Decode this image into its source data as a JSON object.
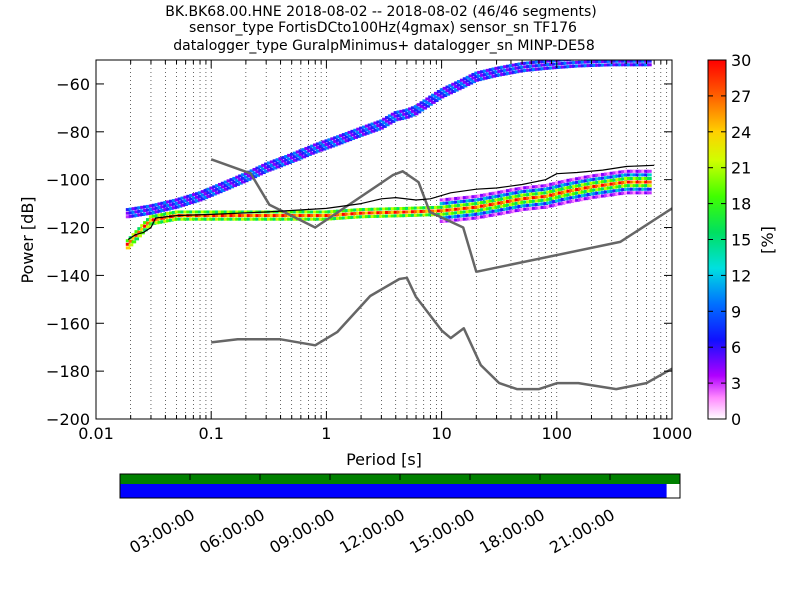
{
  "title": {
    "line1": "BK.BK68.00.HNE   2018-08-02 -- 2018-08-02  (46/46 segments)",
    "line2": "sensor_type FortisDCto100Hz(4gmax) sensor_sn TF176",
    "line3": "datalogger_type GuralpMinimus+ datalogger_sn MINP-DE58"
  },
  "colors": {
    "model_line": "#666666",
    "mode_line": "#000000",
    "coverage_ok": "#008000",
    "coverage_data": "#0000ff"
  },
  "chart_data": {
    "type": "heatmap",
    "xlabel": "Period [s]",
    "ylabel": "Power [dB]",
    "x_scale": "log",
    "xlim": [
      0.01,
      1000
    ],
    "ylim": [
      -200,
      -50
    ],
    "x_ticks": [
      "0.01",
      "0.1",
      "1",
      "10",
      "100",
      "1000"
    ],
    "y_ticks": [
      "−60",
      "−80",
      "−100",
      "−120",
      "−140",
      "−160",
      "−180",
      "−200"
    ],
    "y_tick_values": [
      -60,
      -80,
      -100,
      -120,
      -140,
      -160,
      -180,
      -200
    ],
    "grid": "vertical dotted",
    "colorbar": {
      "label": "[%]",
      "range": [
        0,
        30
      ],
      "ticks": [
        "0",
        "3",
        "6",
        "9",
        "12",
        "15",
        "18",
        "21",
        "24",
        "27",
        "30"
      ]
    },
    "upper_noise_model": [
      [
        0.1,
        -91.5
      ],
      [
        0.22,
        -97.4
      ],
      [
        0.32,
        -110.5
      ],
      [
        0.8,
        -120
      ],
      [
        3.8,
        -98
      ],
      [
        4.6,
        -96.5
      ],
      [
        6.3,
        -101
      ],
      [
        7.9,
        -113.5
      ],
      [
        15.4,
        -120
      ],
      [
        20,
        -138.5
      ],
      [
        354.8,
        -126
      ],
      [
        1000,
        -112
      ]
    ],
    "lower_noise_model": [
      [
        0.1,
        -168
      ],
      [
        0.17,
        -166.7
      ],
      [
        0.4,
        -166.7
      ],
      [
        0.8,
        -169.2
      ],
      [
        1.24,
        -163.7
      ],
      [
        2.4,
        -148.6
      ],
      [
        4.3,
        -141.5
      ],
      [
        5,
        -141
      ],
      [
        6,
        -149
      ],
      [
        10,
        -163
      ],
      [
        12,
        -166.2
      ],
      [
        15.6,
        -162.1
      ],
      [
        21.9,
        -177.5
      ],
      [
        31.6,
        -185
      ],
      [
        45,
        -187.5
      ],
      [
        70,
        -187.5
      ],
      [
        101,
        -185
      ],
      [
        154,
        -185
      ],
      [
        328,
        -187.5
      ],
      [
        600,
        -185
      ],
      [
        1000,
        -179
      ]
    ],
    "mode_line": [
      [
        0.019,
        -125
      ],
      [
        0.022,
        -123
      ],
      [
        0.026,
        -122
      ],
      [
        0.03,
        -120
      ],
      [
        0.033,
        -116
      ],
      [
        0.05,
        -115
      ],
      [
        0.1,
        -114.5
      ],
      [
        0.3,
        -113.5
      ],
      [
        1,
        -112
      ],
      [
        2,
        -110
      ],
      [
        3,
        -108
      ],
      [
        4,
        -107.5
      ],
      [
        6,
        -108.5
      ],
      [
        8,
        -108
      ],
      [
        12,
        -105.5
      ],
      [
        20,
        -104
      ],
      [
        30,
        -103.5
      ],
      [
        50,
        -102
      ],
      [
        80,
        -100
      ],
      [
        100,
        -97.5
      ],
      [
        150,
        -97
      ],
      [
        250,
        -96
      ],
      [
        400,
        -94.5
      ],
      [
        700,
        -94
      ]
    ],
    "psd_density": [
      {
        "name": "upper branch",
        "points": [
          [
            0.019,
            -114
          ],
          [
            0.03,
            -112.5
          ],
          [
            0.05,
            -110
          ],
          [
            0.08,
            -107
          ],
          [
            0.12,
            -103.5
          ],
          [
            0.2,
            -99
          ],
          [
            0.3,
            -95
          ],
          [
            0.5,
            -91
          ],
          [
            0.8,
            -87
          ],
          [
            1.2,
            -84
          ],
          [
            2,
            -80
          ],
          [
            3,
            -77
          ],
          [
            4,
            -73.5
          ],
          [
            5,
            -72.5
          ],
          [
            6,
            -71
          ],
          [
            8,
            -67
          ],
          [
            10,
            -64
          ],
          [
            15,
            -60
          ],
          [
            20,
            -57
          ],
          [
            30,
            -55
          ],
          [
            50,
            -53
          ],
          [
            80,
            -52
          ],
          [
            150,
            -51
          ],
          [
            300,
            -50.5
          ],
          [
            650,
            -50.5
          ]
        ]
      },
      {
        "name": "lower branch",
        "points": [
          [
            0.019,
            -127
          ],
          [
            0.025,
            -121
          ],
          [
            0.03,
            -117
          ],
          [
            0.05,
            -115
          ],
          [
            0.1,
            -115
          ],
          [
            0.2,
            -115
          ],
          [
            0.5,
            -115
          ],
          [
            1,
            -115
          ],
          [
            2,
            -114
          ],
          [
            5,
            -113.5
          ],
          [
            10,
            -113
          ],
          [
            20,
            -111.5
          ],
          [
            30,
            -110
          ],
          [
            50,
            -108
          ],
          [
            80,
            -107
          ],
          [
            120,
            -105
          ],
          [
            200,
            -103
          ],
          [
            400,
            -101
          ],
          [
            650,
            -101
          ]
        ]
      }
    ]
  },
  "coverage": {
    "time_ticks": [
      "03:00:00",
      "06:00:00",
      "09:00:00",
      "12:00:00",
      "15:00:00",
      "18:00:00",
      "21:00:00"
    ],
    "data_fraction": 0.976
  }
}
